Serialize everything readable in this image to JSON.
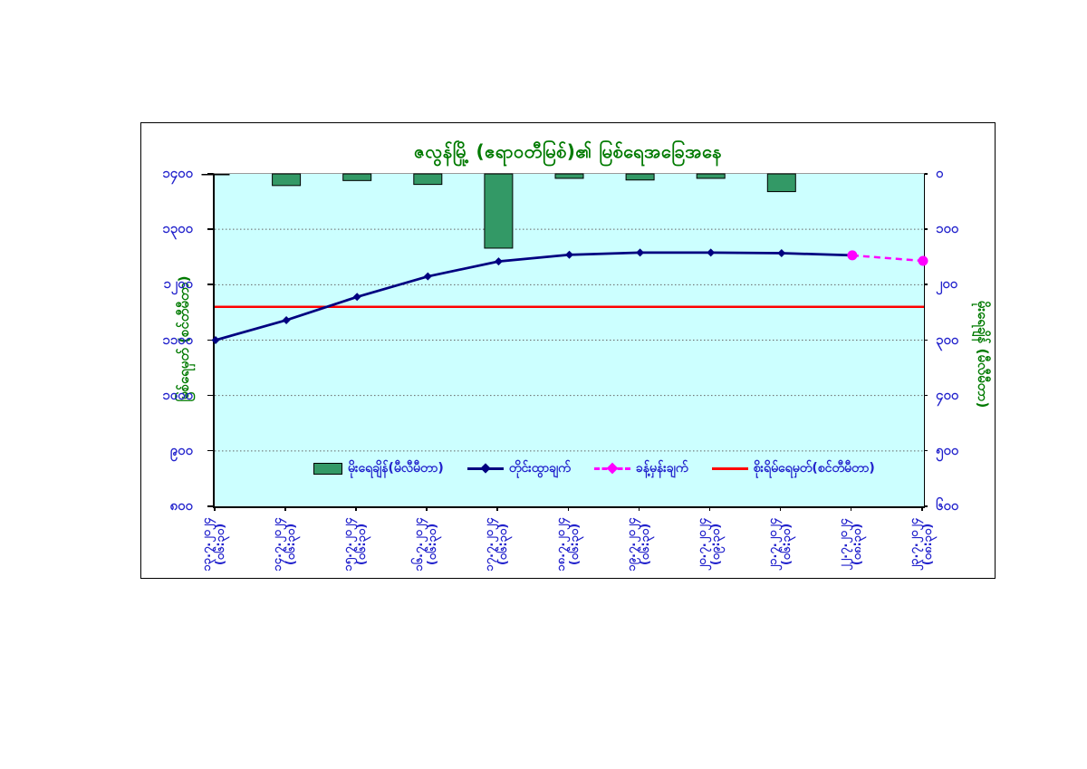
{
  "title": "ဇလွန်မြို့ (ဧရာဝတီမြစ်)၏ မြစ်ရေအခြေအနေ",
  "axes": {
    "left": {
      "title": "မြစ်ရေမှတ် (စင်တီမီတာ)",
      "ticks": [
        "၁၄၀၀",
        "၁၃၀၀",
        "၁၂၀၀",
        "၁၁၀၀",
        "၁၀၀၀",
        "၉၀၀",
        "၈၀၀"
      ]
    },
    "right": {
      "title": "မိုးရေချိန် (မီလီမီတာ)",
      "ticks": [
        "၀",
        "၁၀၀",
        "၂၀၀",
        "၃၀၀",
        "၄၀၀",
        "၅၀၀",
        "၆၀၀"
      ]
    },
    "x": {
      "labels": [
        {
          "date": "၁၃.၇.၂၀၂၄",
          "time": "(၀၆:၃၀)"
        },
        {
          "date": "၁၄.၇.၂၀၂၄",
          "time": "(၀၆:၃၀)"
        },
        {
          "date": "၁၅.၇.၂၀၂၄",
          "time": "(၀၆:၃၀)"
        },
        {
          "date": "၁၆.၇.၂၀၂၄",
          "time": "(၀၆:၃၀)"
        },
        {
          "date": "၁၇.၇.၂၀၂၄",
          "time": "(၀၆:၃၀)"
        },
        {
          "date": "၁၈.၇.၂၀၂၄",
          "time": "(၀၆:၃၀)"
        },
        {
          "date": "၁၉.၇.၂၀၂၄",
          "time": "(၀၆:၃၀)"
        },
        {
          "date": "၂၀.၇.၂၀၂၄",
          "time": "(၀၉:၃၀)"
        },
        {
          "date": "၂၁.၇.၂၀၂၄",
          "time": "(၀၆:၃၀)"
        },
        {
          "date": "၂၂.၇.၂၀၂၄",
          "time": "(၀၈:၃၀)"
        },
        {
          "date": "၂၃.၇.၂၀၂၄",
          "time": "(၀၈:၃၀)"
        }
      ]
    }
  },
  "legend": {
    "items": [
      {
        "label": "မိုးရေချိန်(မီလီမီတာ)",
        "marker": "green-bar"
      },
      {
        "label": "တိုင်းထွာချက်",
        "marker": "navy-line-diamond"
      },
      {
        "label": "ခန့်မှန်းချက်",
        "marker": "magenta-dashed-diamond"
      },
      {
        "label": "စိုးရိမ်ရေမှတ်(စင်တီမီတာ)",
        "marker": "red-line"
      }
    ]
  },
  "colors": {
    "plot_bg": "#CCFFFF",
    "bar_fill": "#339966",
    "bar_stroke": "#000000",
    "observed_line": "#000080",
    "forecast_line": "#FF00FF",
    "danger_line": "#FF0000",
    "title_text": "#007A00",
    "axis_text": "#2222CC",
    "gridline": "#666666"
  },
  "chart_data": {
    "type": "bar",
    "subtype": "combo bar + line, dual axis",
    "title": "ဇလွန်မြို့ (ဧရာဝတီမြစ်)၏ မြစ်ရေအခြေအနေ",
    "categories": [
      "၁၃.၇.၂၀၂၄ (၀၆:၃၀)",
      "၁၄.၇.၂၀၂၄ (၀၆:၃၀)",
      "၁၅.၇.၂၀၂၄ (၀၆:၃၀)",
      "၁၆.၇.၂၀၂၄ (၀၆:၃၀)",
      "၁၇.၇.၂၀၂၄ (၀၆:၃၀)",
      "၁၈.၇.၂၀၂၄ (၀၆:၃၀)",
      "၁၉.၇.၂၀၂၄ (၀၆:၃၀)",
      "၂၀.၇.၂၀၂၄ (၀၉:၃၀)",
      "၂၁.၇.၂၀၂၄ (၀၆:၃၀)",
      "၂၂.၇.၂၀၂၄ (၀၈:၃၀)",
      "၂၃.၇.၂၀၂၄ (၀၈:၃၀)"
    ],
    "series": [
      {
        "name": "မိုးရေချိန်(မီလီမီတာ)",
        "type": "bar",
        "axis": "right",
        "values": [
          0,
          21,
          12,
          19,
          134,
          8,
          11,
          8,
          32,
          null,
          null
        ]
      },
      {
        "name": "တိုင်းထွာချက်",
        "type": "line",
        "axis": "left",
        "marker": "diamond",
        "values": [
          1100,
          1136,
          1178,
          1215,
          1242,
          1254,
          1258,
          1258,
          1257,
          1253,
          null
        ]
      },
      {
        "name": "ခန့်မှန်းချက်",
        "type": "line",
        "style": "dashed",
        "axis": "left",
        "marker": "circle",
        "values": [
          null,
          null,
          null,
          null,
          null,
          null,
          null,
          null,
          null,
          1253,
          1243
        ]
      },
      {
        "name": "စိုးရိမ်ရေမှတ်(စင်တီမီတာ)",
        "type": "hline",
        "axis": "left",
        "value": 1160
      }
    ],
    "left_axis": {
      "label": "မြစ်ရေမှတ် (စင်တီမီတာ)",
      "min": 800,
      "max": 1400,
      "tick_step": 100
    },
    "right_axis": {
      "label": "မိုးရေချိန် (မီလီမီတာ)",
      "min": 0,
      "max": 600,
      "tick_step": 100,
      "inverted": true
    },
    "grid": "horizontal dotted every 100",
    "legend_position": "inside plot, bottom center"
  }
}
